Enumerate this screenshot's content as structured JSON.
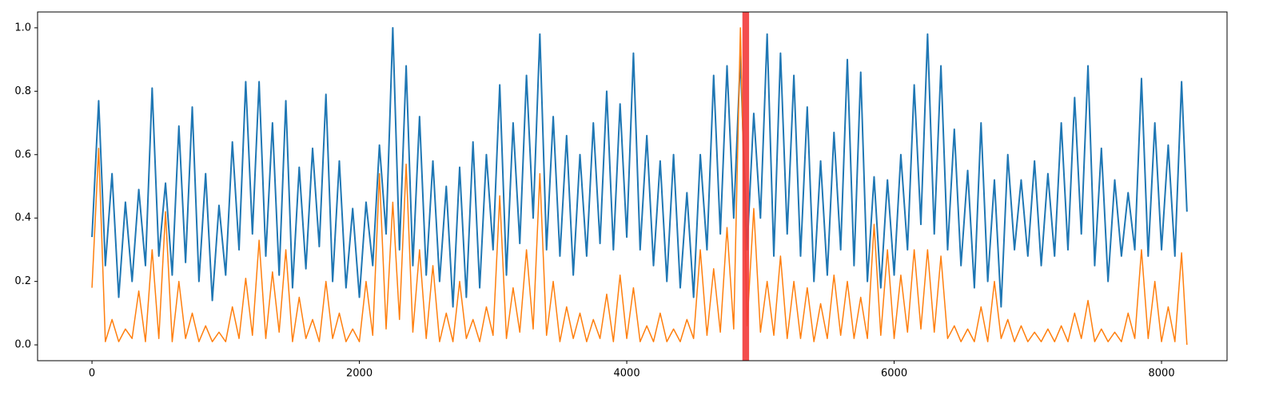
{
  "chart_data": {
    "type": "line",
    "x": [
      0,
      50,
      100,
      150,
      200,
      250,
      300,
      350,
      400,
      450,
      500,
      550,
      600,
      650,
      700,
      750,
      800,
      850,
      900,
      950,
      1000,
      1050,
      1100,
      1150,
      1200,
      1250,
      1300,
      1350,
      1400,
      1450,
      1500,
      1550,
      1600,
      1650,
      1700,
      1750,
      1800,
      1850,
      1900,
      1950,
      2000,
      2050,
      2100,
      2150,
      2200,
      2250,
      2300,
      2350,
      2400,
      2450,
      2500,
      2550,
      2600,
      2650,
      2700,
      2750,
      2800,
      2850,
      2900,
      2950,
      3000,
      3050,
      3100,
      3150,
      3200,
      3250,
      3300,
      3350,
      3400,
      3450,
      3500,
      3550,
      3600,
      3650,
      3700,
      3750,
      3800,
      3850,
      3900,
      3950,
      4000,
      4050,
      4100,
      4150,
      4200,
      4250,
      4300,
      4350,
      4400,
      4450,
      4500,
      4550,
      4600,
      4650,
      4700,
      4750,
      4800,
      4850,
      4900,
      4950,
      5000,
      5050,
      5100,
      5150,
      5200,
      5250,
      5300,
      5350,
      5400,
      5450,
      5500,
      5550,
      5600,
      5650,
      5700,
      5750,
      5800,
      5850,
      5900,
      5950,
      6000,
      6050,
      6100,
      6150,
      6200,
      6250,
      6300,
      6350,
      6400,
      6450,
      6500,
      6550,
      6600,
      6650,
      6700,
      6750,
      6800,
      6850,
      6900,
      6950,
      7000,
      7050,
      7100,
      7150,
      7200,
      7250,
      7300,
      7350,
      7400,
      7450,
      7500,
      7550,
      7600,
      7650,
      7700,
      7750,
      7800,
      7850,
      7900,
      7950,
      8000,
      8050,
      8100,
      8150,
      8190
    ],
    "series": [
      {
        "color": "#1f77b4",
        "values": [
          0.34,
          0.77,
          0.25,
          0.54,
          0.15,
          0.45,
          0.2,
          0.49,
          0.25,
          0.81,
          0.28,
          0.51,
          0.22,
          0.69,
          0.26,
          0.75,
          0.2,
          0.54,
          0.14,
          0.44,
          0.22,
          0.64,
          0.3,
          0.83,
          0.35,
          0.83,
          0.28,
          0.7,
          0.22,
          0.77,
          0.18,
          0.56,
          0.24,
          0.62,
          0.31,
          0.79,
          0.2,
          0.58,
          0.18,
          0.43,
          0.15,
          0.45,
          0.25,
          0.63,
          0.35,
          1.0,
          0.3,
          0.88,
          0.25,
          0.72,
          0.22,
          0.58,
          0.2,
          0.5,
          0.12,
          0.56,
          0.15,
          0.64,
          0.18,
          0.6,
          0.3,
          0.82,
          0.22,
          0.7,
          0.32,
          0.85,
          0.4,
          0.98,
          0.3,
          0.72,
          0.28,
          0.66,
          0.22,
          0.6,
          0.28,
          0.7,
          0.32,
          0.8,
          0.3,
          0.76,
          0.34,
          0.92,
          0.3,
          0.66,
          0.25,
          0.58,
          0.2,
          0.6,
          0.18,
          0.48,
          0.15,
          0.6,
          0.3,
          0.85,
          0.35,
          0.88,
          0.4,
          0.91,
          0.3,
          0.73,
          0.4,
          0.98,
          0.28,
          0.92,
          0.35,
          0.85,
          0.28,
          0.75,
          0.2,
          0.58,
          0.22,
          0.67,
          0.3,
          0.9,
          0.25,
          0.86,
          0.2,
          0.53,
          0.18,
          0.52,
          0.22,
          0.6,
          0.3,
          0.82,
          0.38,
          0.98,
          0.35,
          0.88,
          0.3,
          0.68,
          0.25,
          0.55,
          0.18,
          0.7,
          0.2,
          0.52,
          0.12,
          0.6,
          0.3,
          0.52,
          0.28,
          0.58,
          0.25,
          0.54,
          0.28,
          0.7,
          0.3,
          0.78,
          0.35,
          0.88,
          0.25,
          0.62,
          0.2,
          0.52,
          0.28,
          0.48,
          0.3,
          0.84,
          0.28,
          0.7,
          0.3,
          0.63,
          0.28,
          0.83,
          0.42
        ]
      },
      {
        "color": "#ff7f0e",
        "values": [
          0.18,
          0.62,
          0.01,
          0.08,
          0.01,
          0.05,
          0.02,
          0.17,
          0.01,
          0.3,
          0.02,
          0.42,
          0.01,
          0.2,
          0.02,
          0.1,
          0.01,
          0.06,
          0.01,
          0.04,
          0.01,
          0.12,
          0.02,
          0.21,
          0.03,
          0.33,
          0.02,
          0.23,
          0.04,
          0.3,
          0.01,
          0.15,
          0.02,
          0.08,
          0.01,
          0.2,
          0.02,
          0.1,
          0.01,
          0.05,
          0.01,
          0.2,
          0.03,
          0.54,
          0.05,
          0.45,
          0.08,
          0.57,
          0.04,
          0.3,
          0.02,
          0.25,
          0.01,
          0.1,
          0.01,
          0.2,
          0.02,
          0.08,
          0.01,
          0.12,
          0.03,
          0.47,
          0.02,
          0.18,
          0.04,
          0.3,
          0.05,
          0.54,
          0.03,
          0.2,
          0.01,
          0.12,
          0.02,
          0.1,
          0.01,
          0.08,
          0.02,
          0.16,
          0.01,
          0.22,
          0.02,
          0.18,
          0.01,
          0.06,
          0.01,
          0.1,
          0.01,
          0.05,
          0.01,
          0.08,
          0.02,
          0.3,
          0.03,
          0.24,
          0.04,
          0.37,
          0.05,
          1.0,
          0.06,
          0.43,
          0.04,
          0.2,
          0.03,
          0.28,
          0.02,
          0.2,
          0.02,
          0.18,
          0.01,
          0.13,
          0.02,
          0.22,
          0.03,
          0.2,
          0.02,
          0.15,
          0.02,
          0.38,
          0.03,
          0.3,
          0.02,
          0.22,
          0.04,
          0.3,
          0.05,
          0.3,
          0.04,
          0.28,
          0.02,
          0.06,
          0.01,
          0.05,
          0.01,
          0.12,
          0.01,
          0.2,
          0.02,
          0.08,
          0.01,
          0.06,
          0.01,
          0.04,
          0.01,
          0.05,
          0.01,
          0.06,
          0.01,
          0.1,
          0.02,
          0.14,
          0.01,
          0.05,
          0.01,
          0.04,
          0.01,
          0.1,
          0.02,
          0.3,
          0.02,
          0.2,
          0.01,
          0.12,
          0.01,
          0.29,
          0.0
        ]
      }
    ],
    "highlight": {
      "x": [
        4865,
        4915
      ],
      "color": "#f23a3a"
    },
    "xlim": [
      -407,
      8490
    ],
    "ylim": [
      -0.05,
      1.05
    ],
    "xticks": [
      0,
      2000,
      4000,
      6000,
      8000
    ],
    "yticks": [
      {
        "value": 0,
        "label": "0.0"
      },
      0.2,
      0.4,
      0.6,
      0.8,
      {
        "value": 1,
        "label": "1.0"
      }
    ]
  }
}
